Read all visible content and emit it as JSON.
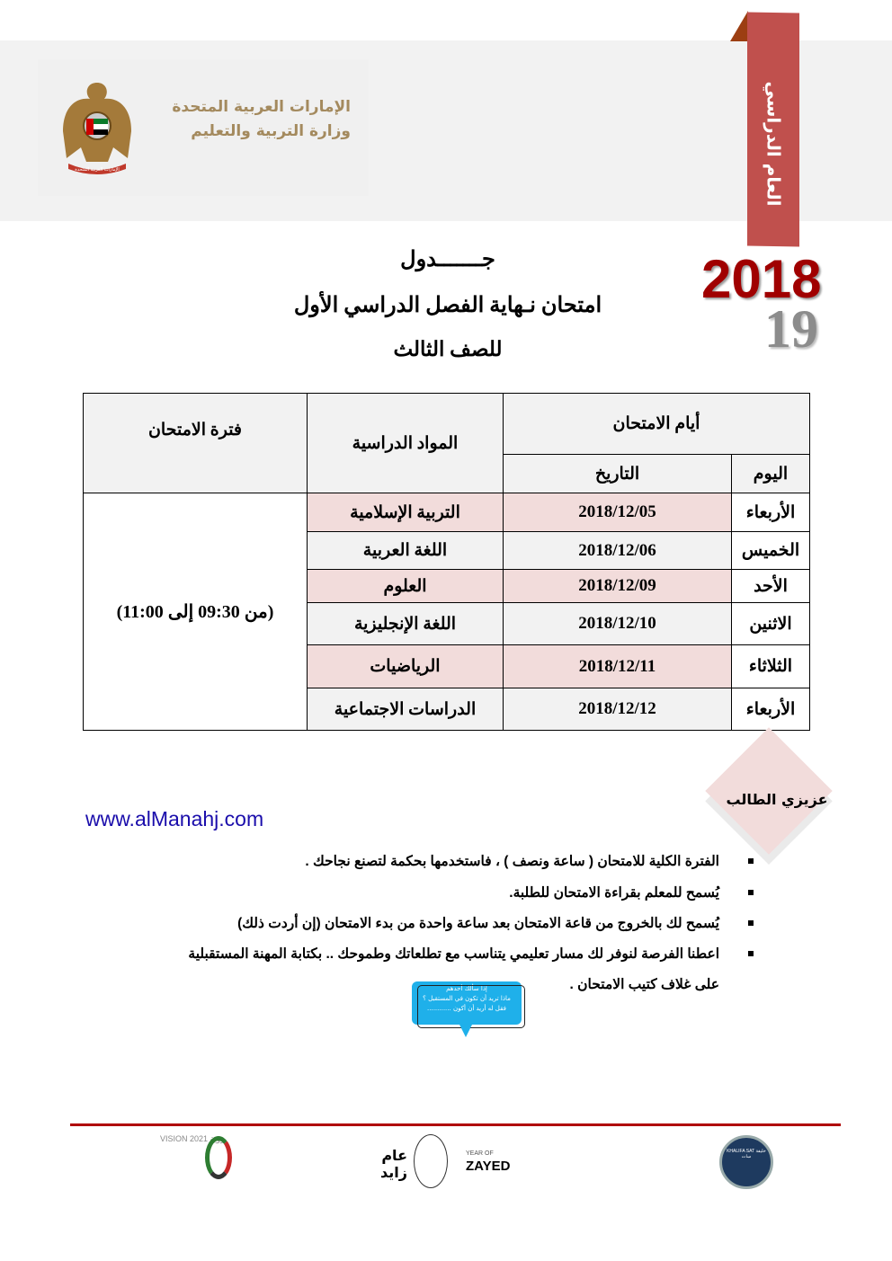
{
  "header": {
    "org_line1": "الإمارات العربية المتحدة",
    "org_line2": "وزارة التربية والتعليم",
    "emblem_text": "الإمارات العربية المتحدة",
    "ribbon_label": "العام الدراسي",
    "year_main": "2018",
    "year_suffix": "19",
    "colors": {
      "ribbon": "#c0504d",
      "year": "#a00000",
      "org_text": "#a48a5e"
    }
  },
  "titles": {
    "line1": "جـــــــدول",
    "line2": "امتحان نـهاية الفصل الدراسي الأول",
    "line3": "للصف الثالث"
  },
  "table": {
    "headers": {
      "exam_days": "أيام الامتحان",
      "day": "اليوم",
      "date": "التاريخ",
      "subjects": "المواد الدراسية",
      "period": "فترة الامتحان"
    },
    "period_value": "(من 09:30  إلى  11:00)",
    "rows": [
      {
        "day": "الأربعاء",
        "date": "2018/12/05",
        "subject": "التربية الإسلامية"
      },
      {
        "day": "الخميس",
        "date": "2018/12/06",
        "subject": "اللغة العربية"
      },
      {
        "day": "الأحد",
        "date": "2018/12/09",
        "subject": "العلوم"
      },
      {
        "day": "الاثنين",
        "date": "2018/12/10",
        "subject": "اللغة الإنجليزية"
      },
      {
        "day": "الثلاثاء",
        "date": "2018/12/11",
        "subject": "الرياضيات"
      },
      {
        "day": "الأربعاء",
        "date": "2018/12/12",
        "subject": "الدراسات الاجتماعية"
      }
    ]
  },
  "website": "www.alManahj.com",
  "notes": {
    "heading": "عزيزي الطالب",
    "items": [
      "الفترة الكلية للامتحان ( ساعة ونصف ) ، فاستخدمها بحكمة لتصنع نجاحك .",
      "يُسمح للمعلم بقراءة الامتحان للطلبة.",
      "يُسمح لك بالخروج من قاعة الامتحان بعد ساعة واحدة من بدء الامتحان (إن أردت ذلك)",
      "اعطنا الفرصة لنوفر لك مسار تعليمي يتناسب مع تطلعاتك وطموحك .. بكتابة المهنة  المستقبلية"
    ],
    "continuation": "على غلاف  كتيب الامتحان ."
  },
  "bubble": {
    "line1": "إذا سألك أحدهم",
    "line2": "ماذا تريد أن تكون في المستقبل ؟",
    "line3": "فقل له أريد أن أكون ............"
  },
  "footer": {
    "vision_logo": "VISION 2021 رؤية",
    "zayed_logo_ar": "عام زايد",
    "zayed_logo_en_1": "YEAR OF",
    "zayed_logo_en_2": "ZAYED",
    "khalifasat_logo": "KHALIFA SAT خليفة سات"
  }
}
